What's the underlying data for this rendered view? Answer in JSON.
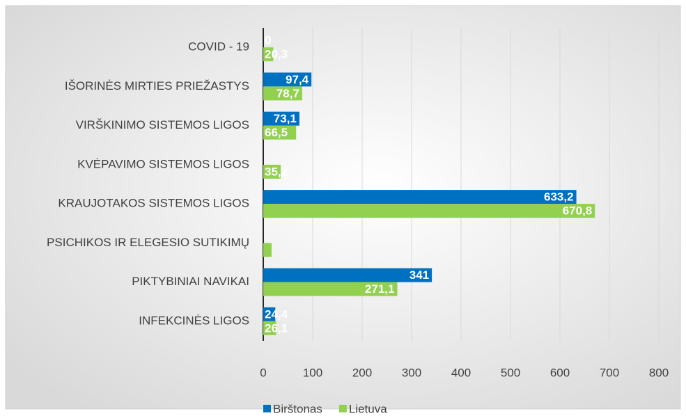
{
  "chart_data": {
    "type": "hbar",
    "categories": [
      "COVID - 19",
      "IŠORINĖS MIRTIES PRIEŽASTYS",
      "VIRŠKINIMO SISTEMOS LIGOS",
      "KVĖPAVIMO SISTEMOS LIGOS",
      "KRAUJOTAKOS SISTEMOS LIGOS",
      "PSICHIKOS IR ELEGESIO SUTIKIMŲ",
      "PIKTYBINIAI NAVIKAI",
      "INFEKCINĖS LIGOS"
    ],
    "series": [
      {
        "name": "Birštonas",
        "color": "#0070c0",
        "values": [
          0,
          97.4,
          73.1,
          null,
          633.2,
          null,
          341,
          24.4
        ],
        "value_labels": [
          "0",
          "97,4",
          "73,1",
          null,
          "633,2",
          null,
          "341",
          "24,4"
        ]
      },
      {
        "name": "Lietuva",
        "color": "#92d050",
        "values": [
          20.3,
          78.7,
          66.5,
          35.2,
          670.8,
          16.8,
          271.1,
          26.1
        ],
        "value_labels": [
          "20,3",
          "78,7",
          "66,5",
          "35,2",
          "670,8",
          null,
          "271,1",
          "26,1"
        ]
      }
    ],
    "xlim": [
      0,
      800
    ],
    "xticks": [
      0,
      100,
      200,
      300,
      400,
      500,
      600,
      700,
      800
    ],
    "grid": true,
    "legend": "bottom"
  }
}
